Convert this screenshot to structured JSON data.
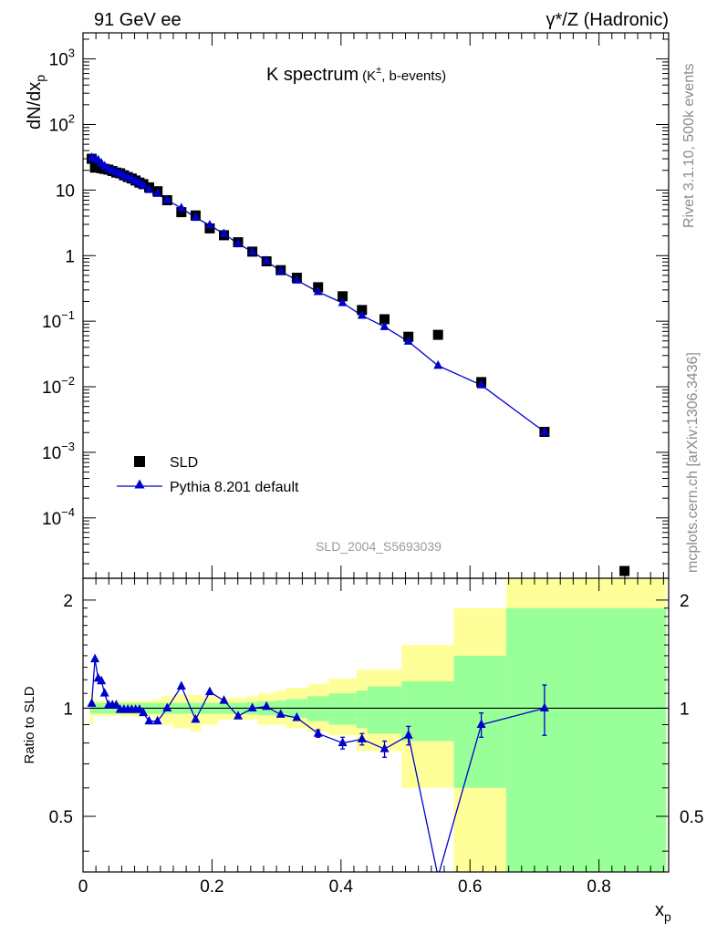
{
  "header": {
    "left": "91 GeV ee",
    "right": "γ*/Z (Hadronic)"
  },
  "side_labels": {
    "rivet": "Rivet 3.1.10,  500k events",
    "mcplots": "mcplots.cern.ch [arXiv:1306.3436]"
  },
  "chart_data": [
    {
      "type": "scatter",
      "title_main": "K spectrum",
      "title_sub": "(K",
      "title_sup": "±",
      "title_tail": ", b-events)",
      "watermark": "SLD_2004_S5693039",
      "ylabel_main": "dN/dx",
      "ylabel_sub": "p",
      "yscale": "log",
      "xlim": [
        0,
        0.908
      ],
      "ylim": [
        1.2e-05,
        2500
      ],
      "y_ticks": [
        {
          "value": 0.0001,
          "base": "10",
          "exp": "−4"
        },
        {
          "value": 0.001,
          "base": "10",
          "exp": "−3"
        },
        {
          "value": 0.01,
          "base": "10",
          "exp": "−2"
        },
        {
          "value": 0.1,
          "base": "10",
          "exp": "−1"
        },
        {
          "value": 1,
          "base": "1",
          "exp": ""
        },
        {
          "value": 10,
          "base": "10",
          "exp": ""
        },
        {
          "value": 100,
          "base": "10",
          "exp": "2"
        },
        {
          "value": 1000,
          "base": "10",
          "exp": "3"
        }
      ],
      "legend_position": "lower-left",
      "series": [
        {
          "name": "SLD",
          "color": "#000000",
          "marker": "square",
          "x": [
            0.0135,
            0.0185,
            0.0235,
            0.0285,
            0.0335,
            0.0395,
            0.0455,
            0.0515,
            0.0575,
            0.0635,
            0.0695,
            0.0755,
            0.0815,
            0.0875,
            0.0935,
            0.1025,
            0.1155,
            0.1305,
            0.1525,
            0.1745,
            0.1965,
            0.2185,
            0.2405,
            0.2625,
            0.2845,
            0.3065,
            0.3315,
            0.3645,
            0.4025,
            0.4325,
            0.4675,
            0.5045,
            0.5505,
            0.6175,
            0.7155,
            0.8395
          ],
          "y": [
            30.0,
            22.0,
            23.5,
            21.5,
            21.0,
            20.5,
            19.5,
            18.5,
            18.0,
            16.8,
            15.8,
            15.0,
            14.0,
            13.0,
            12.3,
            11.0,
            9.6,
            7.0,
            4.6,
            4.1,
            2.6,
            2.05,
            1.6,
            1.15,
            0.82,
            0.6,
            0.46,
            0.33,
            0.24,
            0.148,
            0.107,
            0.058,
            0.062,
            0.0118,
            0.00205,
            1.55e-05
          ]
        },
        {
          "name": "Pythia 8.201 default",
          "color": "#0000cc",
          "marker": "triangle",
          "x": [
            0.0135,
            0.0185,
            0.0235,
            0.0285,
            0.0335,
            0.0395,
            0.0455,
            0.0515,
            0.0575,
            0.0635,
            0.0695,
            0.0755,
            0.0815,
            0.0875,
            0.0935,
            0.1025,
            0.1155,
            0.1305,
            0.1525,
            0.1745,
            0.1965,
            0.2185,
            0.2405,
            0.2625,
            0.2845,
            0.3065,
            0.3315,
            0.3645,
            0.4025,
            0.4325,
            0.4675,
            0.5045,
            0.5505,
            0.6175,
            0.7155
          ],
          "y": [
            31.0,
            30.0,
            28.5,
            25.5,
            23.0,
            21.0,
            19.8,
            18.8,
            17.8,
            16.6,
            15.6,
            14.8,
            13.8,
            12.8,
            11.9,
            10.1,
            8.8,
            7.0,
            5.3,
            3.8,
            2.9,
            2.15,
            1.52,
            1.15,
            0.83,
            0.58,
            0.42,
            0.28,
            0.19,
            0.122,
            0.082,
            0.049,
            0.021,
            0.0106,
            0.00205
          ],
          "y_err": [
            0,
            0,
            0,
            0,
            0,
            0,
            0,
            0,
            0,
            0,
            0,
            0,
            0,
            0,
            0,
            0,
            0,
            0,
            0,
            0,
            0,
            0,
            0,
            0,
            0,
            0,
            0,
            0,
            0,
            0,
            0,
            0,
            0,
            0,
            0.0003
          ]
        }
      ]
    },
    {
      "type": "scatter",
      "ylabel": "Ratio to SLD",
      "xlabel_main": "x",
      "xlabel_sub": "p",
      "xlim": [
        0,
        0.908
      ],
      "ylim": [
        0.35,
        2.3
      ],
      "x_ticks": [
        "0",
        "0.2",
        "0.4",
        "0.6",
        "0.8"
      ],
      "y_ticks": [
        "0.5",
        "1",
        "2"
      ],
      "reference_line": 1,
      "bands": {
        "inner_color": "#99ff99",
        "outer_color": "#ffff99",
        "edges": [
          0.011,
          0.016,
          0.021,
          0.026,
          0.031,
          0.036,
          0.043,
          0.048,
          0.055,
          0.06,
          0.067,
          0.072,
          0.079,
          0.084,
          0.091,
          0.096,
          0.109,
          0.122,
          0.139,
          0.166,
          0.183,
          0.21,
          0.227,
          0.254,
          0.271,
          0.298,
          0.315,
          0.348,
          0.381,
          0.424,
          0.441,
          0.494,
          0.507,
          0.575,
          0.656,
          0.775,
          0.904
        ],
        "inner_half_width": [
          0.035,
          0.035,
          0.035,
          0.035,
          0.035,
          0.035,
          0.035,
          0.035,
          0.035,
          0.035,
          0.035,
          0.035,
          0.035,
          0.035,
          0.035,
          0.035,
          0.035,
          0.035,
          0.035,
          0.035,
          0.035,
          0.035,
          0.035,
          0.04,
          0.045,
          0.05,
          0.06,
          0.08,
          0.1,
          0.12,
          0.15,
          0.19,
          0.19,
          0.4,
          0.9,
          0.9
        ],
        "outer_lower": [
          0.9,
          0.95,
          0.95,
          0.95,
          0.95,
          0.95,
          0.95,
          0.95,
          0.95,
          0.95,
          0.95,
          0.95,
          0.95,
          0.95,
          0.95,
          0.95,
          0.94,
          0.9,
          0.88,
          0.86,
          0.9,
          0.93,
          0.93,
          0.93,
          0.9,
          0.9,
          0.88,
          0.86,
          0.84,
          0.76,
          0.76,
          0.6,
          0.6,
          0.3,
          0.3,
          0.3
        ],
        "outer_upper": [
          1.1,
          1.05,
          1.05,
          1.05,
          1.05,
          1.05,
          1.05,
          1.05,
          1.05,
          1.05,
          1.05,
          1.05,
          1.05,
          1.05,
          1.05,
          1.05,
          1.06,
          1.08,
          1.09,
          1.09,
          1.08,
          1.07,
          1.07,
          1.08,
          1.1,
          1.12,
          1.14,
          1.17,
          1.21,
          1.28,
          1.28,
          1.5,
          1.5,
          1.9,
          2.5,
          2.5
        ]
      },
      "series": [
        {
          "name": "Pythia 8.201 default",
          "color": "#0000cc",
          "marker": "triangle",
          "x": [
            0.0135,
            0.0185,
            0.0235,
            0.0285,
            0.0335,
            0.0395,
            0.0455,
            0.0515,
            0.0575,
            0.0635,
            0.0695,
            0.0755,
            0.0815,
            0.0875,
            0.0935,
            0.1025,
            0.1155,
            0.1305,
            0.1525,
            0.1745,
            0.1965,
            0.2185,
            0.2405,
            0.2625,
            0.2845,
            0.3065,
            0.3315,
            0.3645,
            0.4025,
            0.4325,
            0.4675,
            0.5045,
            0.5505,
            0.6175,
            0.7155
          ],
          "y": [
            1.03,
            1.37,
            1.21,
            1.19,
            1.1,
            1.02,
            1.02,
            1.02,
            0.99,
            0.99,
            0.99,
            0.99,
            0.99,
            0.99,
            0.97,
            0.92,
            0.92,
            1.0,
            1.15,
            0.93,
            1.11,
            1.05,
            0.95,
            1.0,
            1.01,
            0.96,
            0.94,
            0.85,
            0.8,
            0.82,
            0.77,
            0.84,
            0.34,
            0.9,
            1.0
          ],
          "y_err": [
            0,
            0,
            0,
            0,
            0,
            0,
            0,
            0,
            0,
            0,
            0,
            0,
            0,
            0,
            0,
            0,
            0,
            0,
            0,
            0,
            0,
            0,
            0,
            0,
            0,
            0,
            0,
            0.02,
            0.03,
            0.03,
            0.04,
            0.05,
            0,
            0.07,
            0.16
          ]
        }
      ]
    }
  ]
}
